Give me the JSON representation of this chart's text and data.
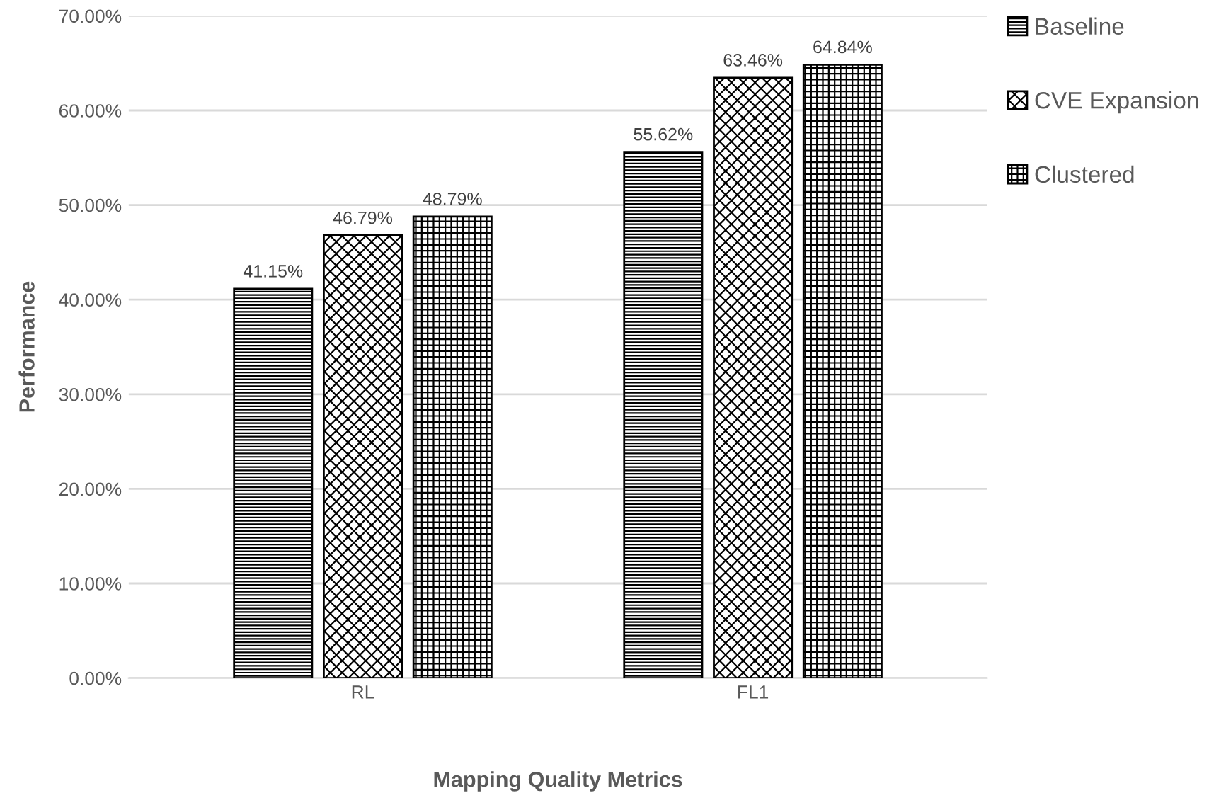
{
  "chart_data": {
    "type": "bar",
    "xlabel": "Mapping Quality Metrics",
    "ylabel": "Performance",
    "categories": [
      "RL",
      "FL1"
    ],
    "series": [
      {
        "name": "Baseline",
        "color": "#000000",
        "values": [
          41.15,
          55.62
        ],
        "value_labels": [
          "41.15%",
          "55.62%"
        ]
      },
      {
        "name": "CVE Expansion",
        "color": "#000000",
        "values": [
          46.79,
          63.46
        ],
        "value_labels": [
          "46.79%",
          "63.46%"
        ]
      },
      {
        "name": "Clustered",
        "color": "#000000",
        "values": [
          48.79,
          64.84
        ],
        "value_labels": [
          "48.79%",
          "64.84%"
        ]
      }
    ],
    "ylim": [
      0,
      70
    ],
    "yticks": [
      {
        "value": 0,
        "label": "0.00%"
      },
      {
        "value": 10,
        "label": "10.00%"
      },
      {
        "value": 20,
        "label": "20.00%"
      },
      {
        "value": 30,
        "label": "30.00%"
      },
      {
        "value": 40,
        "label": "40.00%"
      },
      {
        "value": 50,
        "label": "50.00%"
      },
      {
        "value": 60,
        "label": "60.00%"
      },
      {
        "value": 70,
        "label": "70.00%"
      }
    ],
    "grid": "y",
    "legend": "top right"
  }
}
